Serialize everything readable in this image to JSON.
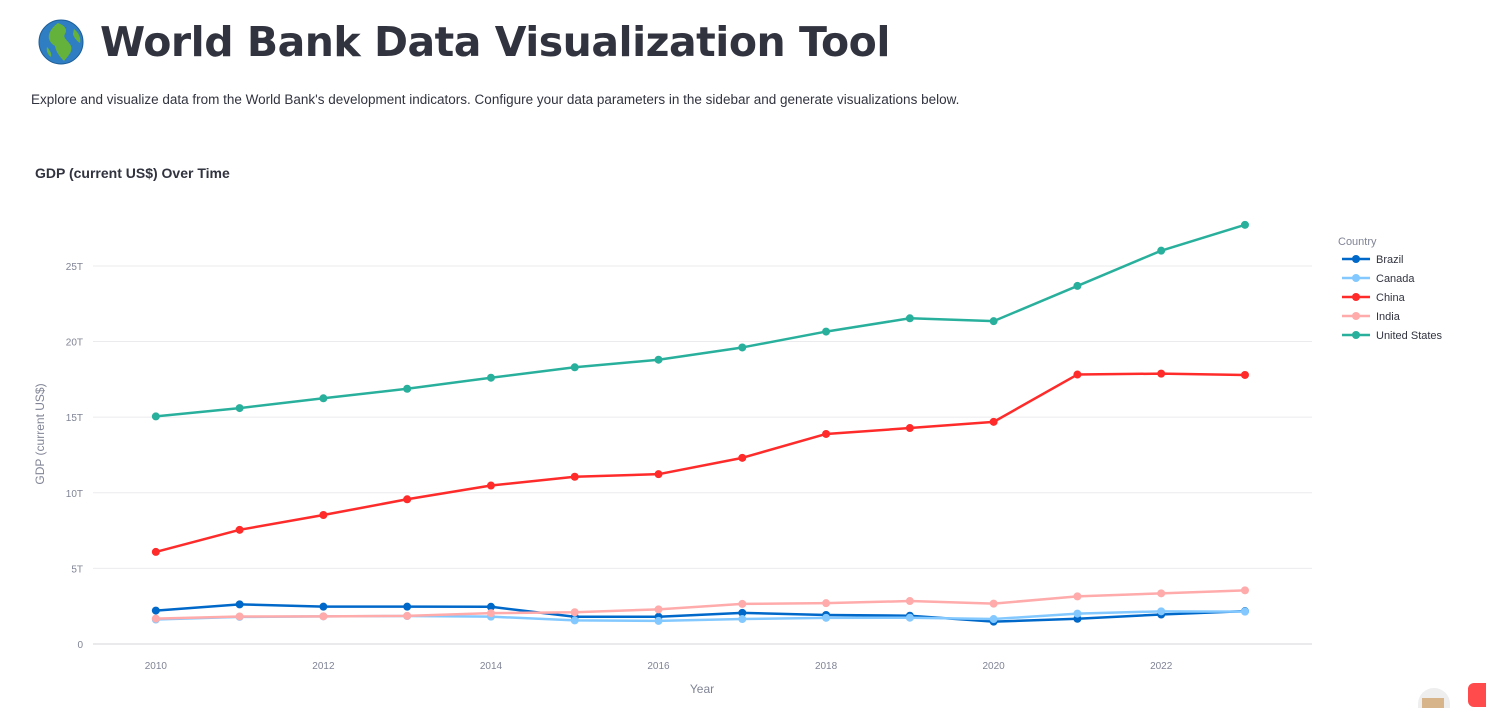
{
  "page": {
    "title": "World Bank Data Visualization Tool",
    "subtitle": "Explore and visualize data from the World Bank's development indicators. Configure your data parameters in the sidebar and generate visualizations below."
  },
  "icons": {
    "title_icon": "globe-icon"
  },
  "chart_data": {
    "type": "line",
    "title": "GDP (current US$) Over Time",
    "xlabel": "Year",
    "ylabel": "GDP (current US$)",
    "legend_title": "Country",
    "legend_position": "right",
    "x": [
      2010,
      2011,
      2012,
      2013,
      2014,
      2015,
      2016,
      2017,
      2018,
      2019,
      2020,
      2021,
      2022,
      2023
    ],
    "xticks": [
      2010,
      2012,
      2014,
      2016,
      2018,
      2020,
      2022
    ],
    "yticks": [
      {
        "value": 0,
        "label": "0"
      },
      {
        "value": 5,
        "label": "5T"
      },
      {
        "value": 10,
        "label": "10T"
      },
      {
        "value": 15,
        "label": "15T"
      },
      {
        "value": 20,
        "label": "20T"
      },
      {
        "value": 25,
        "label": "25T"
      }
    ],
    "xlim": [
      2009.25,
      2023.8
    ],
    "ylim": [
      0,
      28.7
    ],
    "unit": "trillion US$",
    "series": [
      {
        "name": "Brazil",
        "color": "#0068c9",
        "values": [
          2.21,
          2.62,
          2.47,
          2.47,
          2.46,
          1.8,
          1.8,
          2.06,
          1.92,
          1.87,
          1.48,
          1.67,
          1.95,
          2.17
        ]
      },
      {
        "name": "Canada",
        "color": "#83c9ff",
        "values": [
          1.62,
          1.79,
          1.83,
          1.85,
          1.81,
          1.56,
          1.53,
          1.65,
          1.73,
          1.74,
          1.65,
          2.01,
          2.16,
          2.14
        ]
      },
      {
        "name": "China",
        "color": "#ff2b2b",
        "values": [
          6.09,
          7.55,
          8.53,
          9.57,
          10.48,
          11.06,
          11.23,
          12.31,
          13.89,
          14.28,
          14.69,
          17.82,
          17.88,
          17.79
        ]
      },
      {
        "name": "India",
        "color": "#ffabab",
        "values": [
          1.68,
          1.82,
          1.83,
          1.86,
          2.04,
          2.1,
          2.29,
          2.65,
          2.7,
          2.84,
          2.67,
          3.15,
          3.35,
          3.55
        ]
      },
      {
        "name": "United States",
        "color": "#29b09d",
        "values": [
          15.05,
          15.6,
          16.25,
          16.88,
          17.61,
          18.3,
          18.8,
          19.61,
          20.66,
          21.54,
          21.35,
          23.68,
          26.01,
          27.72
        ]
      }
    ]
  }
}
